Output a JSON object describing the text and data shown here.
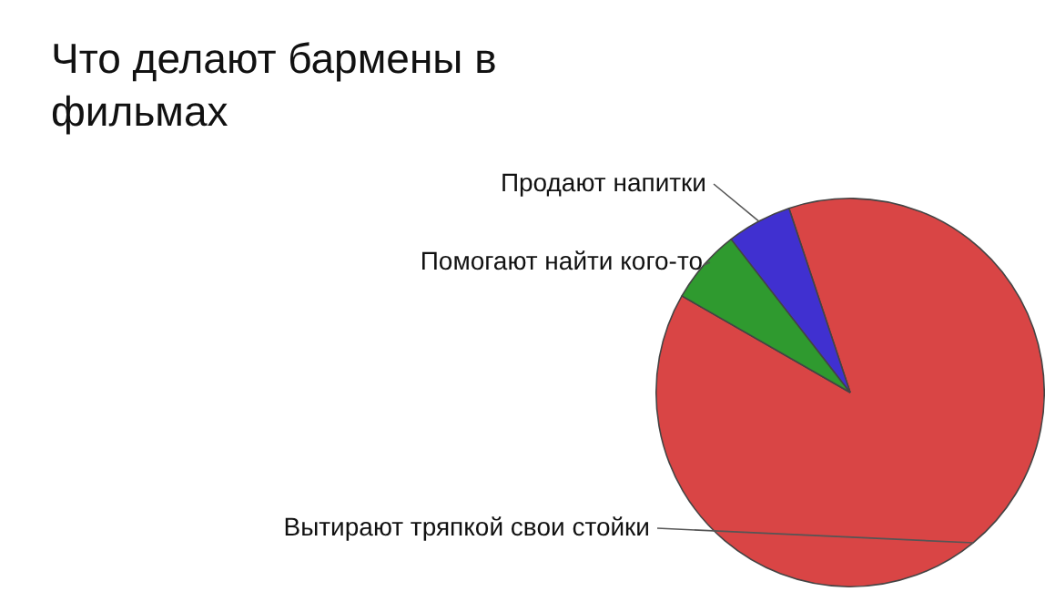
{
  "chart_data": {
    "type": "pie",
    "title": "Что делают бармены в фильмах",
    "categories": [
      "Вытирают тряпкой свои стойки",
      "Помогают найти кого-то",
      "Продают напитки"
    ],
    "values": [
      88.4,
      6.2,
      5.4
    ],
    "colors": [
      "#d94545",
      "#2f9a2f",
      "#4030d0"
    ],
    "legend": false
  }
}
